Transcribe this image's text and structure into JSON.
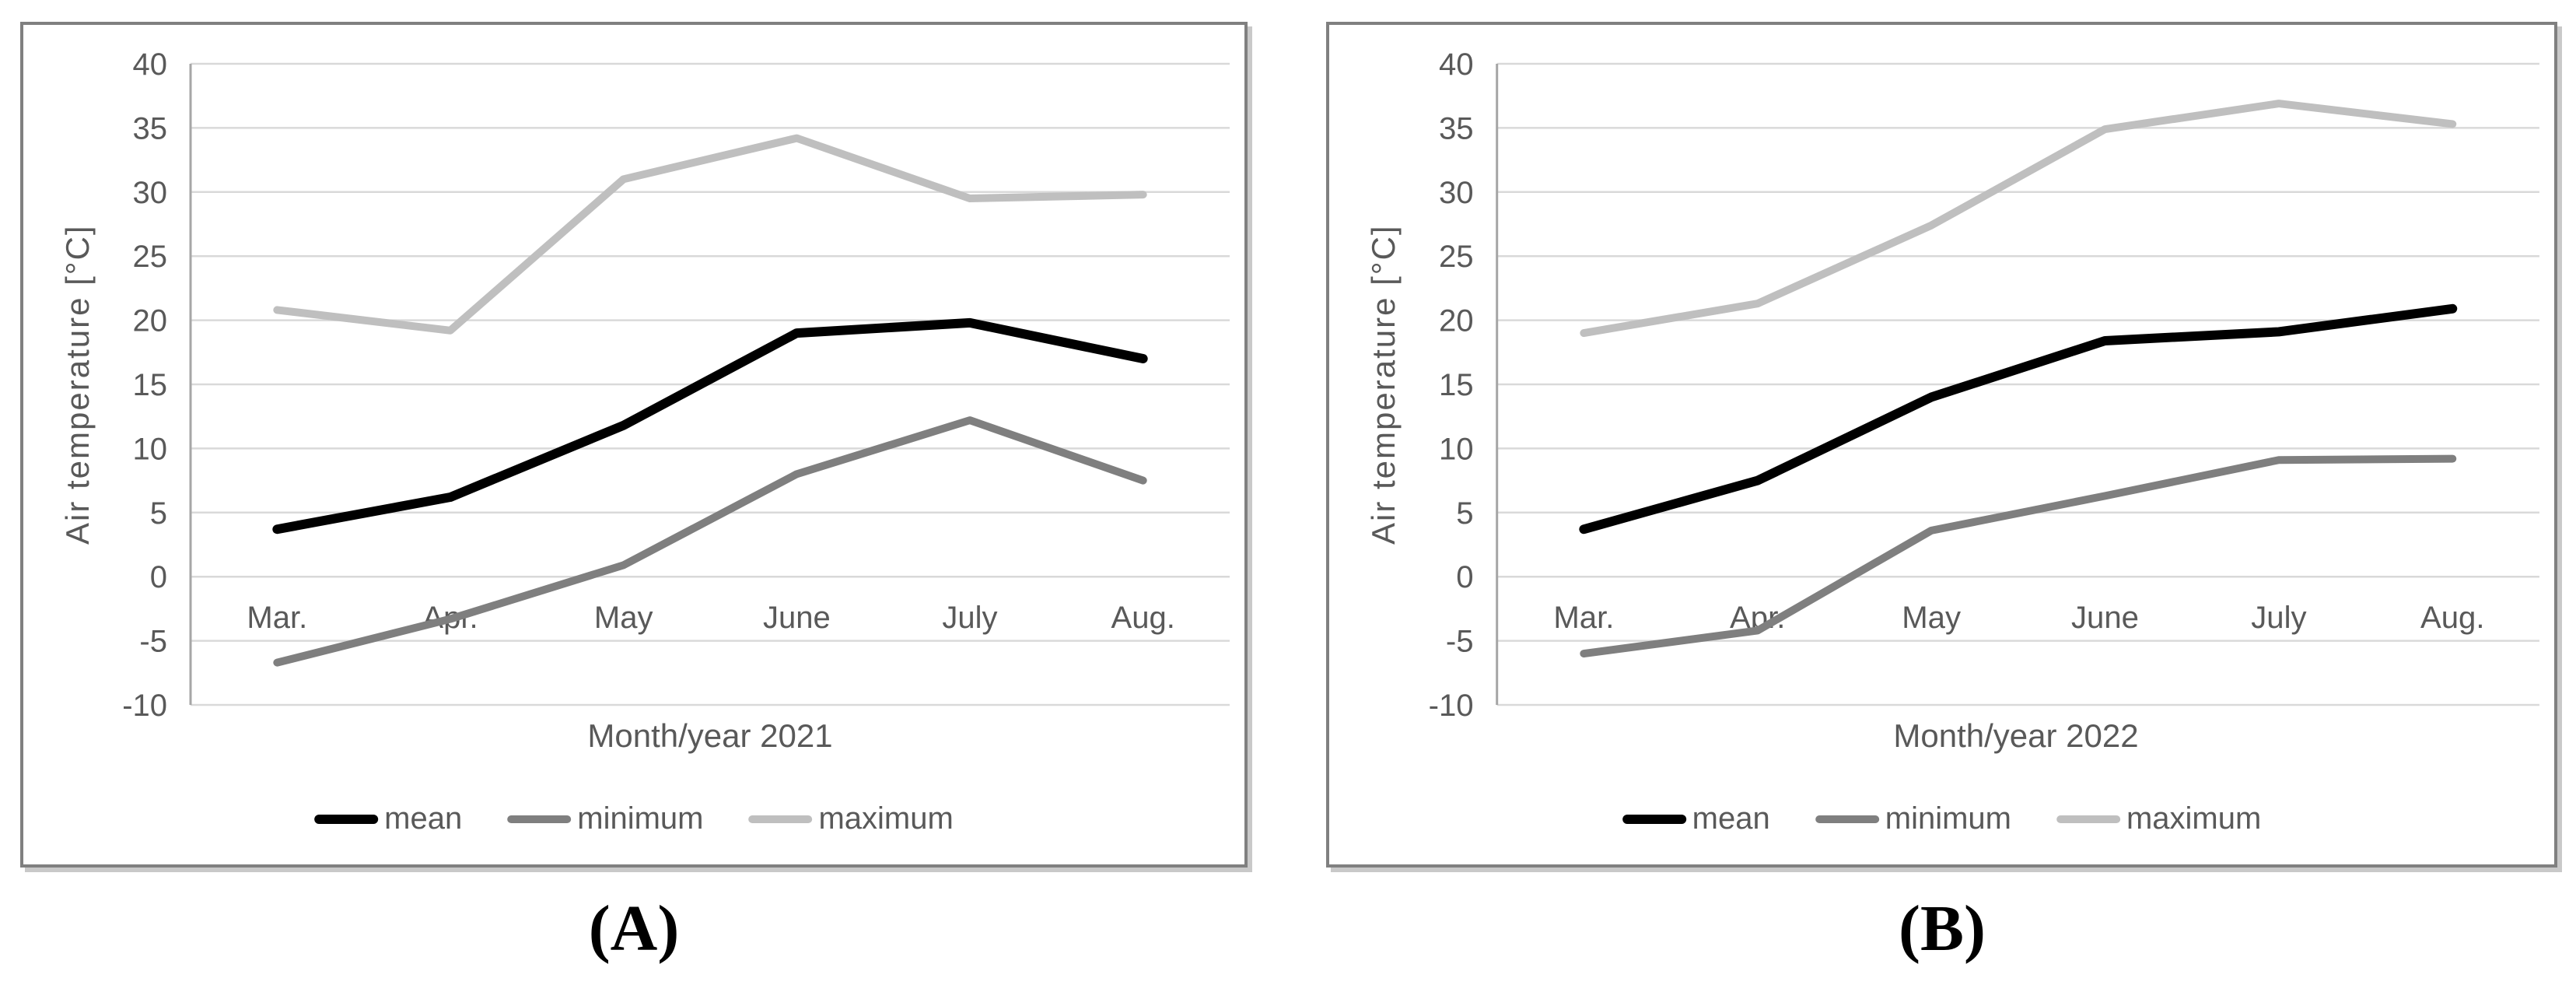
{
  "figure": {
    "captions": {
      "a": "(A)",
      "b": "(B)"
    }
  },
  "colors": {
    "mean": "#000000",
    "minimum": "#7f7f7f",
    "maximum": "#bfbfbf",
    "gridline": "#d9d9d9",
    "axis_line": "#a6a6a6",
    "text": "#595959",
    "panel_border": "#808080",
    "panel_shadow": "#c9c9c9"
  },
  "chart_data": [
    {
      "id": "air-temperature-2021",
      "type": "line",
      "title": "",
      "xlabel": "Month/year 2021",
      "ylabel": "Air temperature [°C]",
      "categories": [
        "Mar.",
        "Apr.",
        "May",
        "June",
        "July",
        "Aug."
      ],
      "ylim": [
        -10,
        40
      ],
      "ytick_step": 5,
      "grid": "horizontal",
      "legend_position": "bottom",
      "series": [
        {
          "name": "mean",
          "color_key": "mean",
          "values": [
            3.7,
            6.2,
            11.8,
            19.0,
            19.8,
            17.0
          ]
        },
        {
          "name": "minimum",
          "color_key": "minimum",
          "values": [
            -6.7,
            -3.3,
            0.9,
            8.0,
            12.2,
            7.5
          ]
        },
        {
          "name": "maximum",
          "color_key": "maximum",
          "values": [
            20.8,
            19.2,
            31.0,
            34.2,
            29.5,
            29.8
          ]
        }
      ]
    },
    {
      "id": "air-temperature-2022",
      "type": "line",
      "title": "",
      "xlabel": "Month/year 2022",
      "ylabel": "Air temperature [°C]",
      "categories": [
        "Mar.",
        "Apr.",
        "May",
        "June",
        "July",
        "Aug."
      ],
      "ylim": [
        -10,
        40
      ],
      "ytick_step": 5,
      "grid": "horizontal",
      "legend_position": "bottom",
      "series": [
        {
          "name": "mean",
          "color_key": "mean",
          "values": [
            3.7,
            7.5,
            14.0,
            18.4,
            19.1,
            20.9
          ]
        },
        {
          "name": "minimum",
          "color_key": "minimum",
          "values": [
            -6.0,
            -4.2,
            3.6,
            6.3,
            9.1,
            9.2
          ]
        },
        {
          "name": "maximum",
          "color_key": "maximum",
          "values": [
            19.0,
            21.3,
            27.4,
            34.9,
            36.9,
            35.3
          ]
        }
      ]
    }
  ]
}
